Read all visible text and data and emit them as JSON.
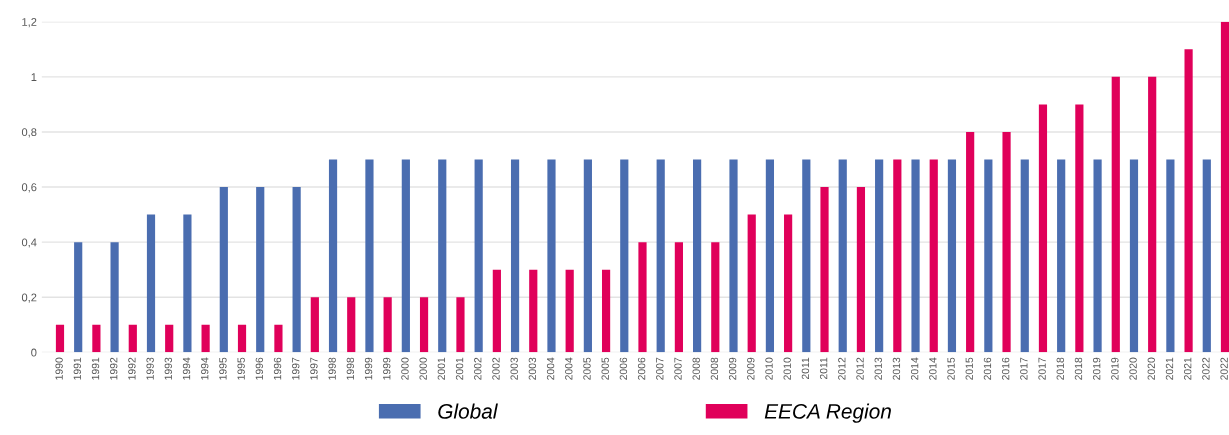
{
  "chart_data": {
    "type": "bar",
    "categories": [
      "1990",
      "1991",
      "1991",
      "1992",
      "1992",
      "1993",
      "1993",
      "1994",
      "1994",
      "1995",
      "1995",
      "1996",
      "1996",
      "1997",
      "1997",
      "1998",
      "1998",
      "1999",
      "1999",
      "2000",
      "2000",
      "2001",
      "2001",
      "2002",
      "2002",
      "2003",
      "2003",
      "2004",
      "2004",
      "2005",
      "2005",
      "2006",
      "2006",
      "2007",
      "2007",
      "2008",
      "2008",
      "2009",
      "2009",
      "2010",
      "2010",
      "2011",
      "2011",
      "2012",
      "2012",
      "2013",
      "2013",
      "2014",
      "2014",
      "2015",
      "2015",
      "2016",
      "2016",
      "2017",
      "2017",
      "2018",
      "2018",
      "2019",
      "2019",
      "2020",
      "2020",
      "2021",
      "2021",
      "2022",
      "2022"
    ],
    "series": [
      {
        "name": "Global",
        "color": "#4a6db0",
        "values": [
          null,
          0.4,
          null,
          0.4,
          null,
          0.5,
          null,
          0.5,
          null,
          0.6,
          null,
          0.6,
          null,
          0.6,
          null,
          0.7,
          null,
          0.7,
          null,
          0.7,
          null,
          0.7,
          null,
          0.7,
          null,
          0.7,
          null,
          0.7,
          null,
          0.7,
          null,
          0.7,
          null,
          0.7,
          null,
          0.7,
          null,
          0.7,
          null,
          0.7,
          null,
          0.7,
          null,
          0.7,
          null,
          0.7,
          null,
          0.7,
          null,
          0.7,
          null,
          0.7,
          null,
          0.7,
          null,
          0.7,
          null,
          0.7,
          null,
          0.7,
          null,
          0.7,
          null,
          0.7,
          null
        ]
      },
      {
        "name": "EECA Region",
        "color": "#e0005a",
        "values": [
          0.1,
          null,
          0.1,
          null,
          0.1,
          null,
          0.1,
          null,
          0.1,
          null,
          0.1,
          null,
          0.1,
          null,
          0.2,
          null,
          0.2,
          null,
          0.2,
          null,
          0.2,
          null,
          0.2,
          null,
          0.3,
          null,
          0.3,
          null,
          0.3,
          null,
          0.3,
          null,
          0.4,
          null,
          0.4,
          null,
          0.4,
          null,
          0.5,
          null,
          0.5,
          null,
          0.6,
          null,
          0.6,
          null,
          0.7,
          null,
          0.7,
          null,
          0.8,
          null,
          0.8,
          null,
          0.9,
          null,
          0.9,
          null,
          1,
          null,
          1,
          null,
          1.1,
          null,
          1.2
        ]
      }
    ],
    "ylim": [
      0,
      1.2
    ],
    "yticks": [
      0,
      {
        "value": 0.2,
        "label": "0,2"
      },
      {
        "value": 0.4,
        "label": "0,4"
      },
      {
        "value": 0.6,
        "label": "0,6"
      },
      {
        "value": 0.8,
        "label": "0,8"
      },
      1,
      {
        "value": 1.2,
        "label": "1,2"
      }
    ],
    "grid": "y",
    "legend": "bottom"
  }
}
